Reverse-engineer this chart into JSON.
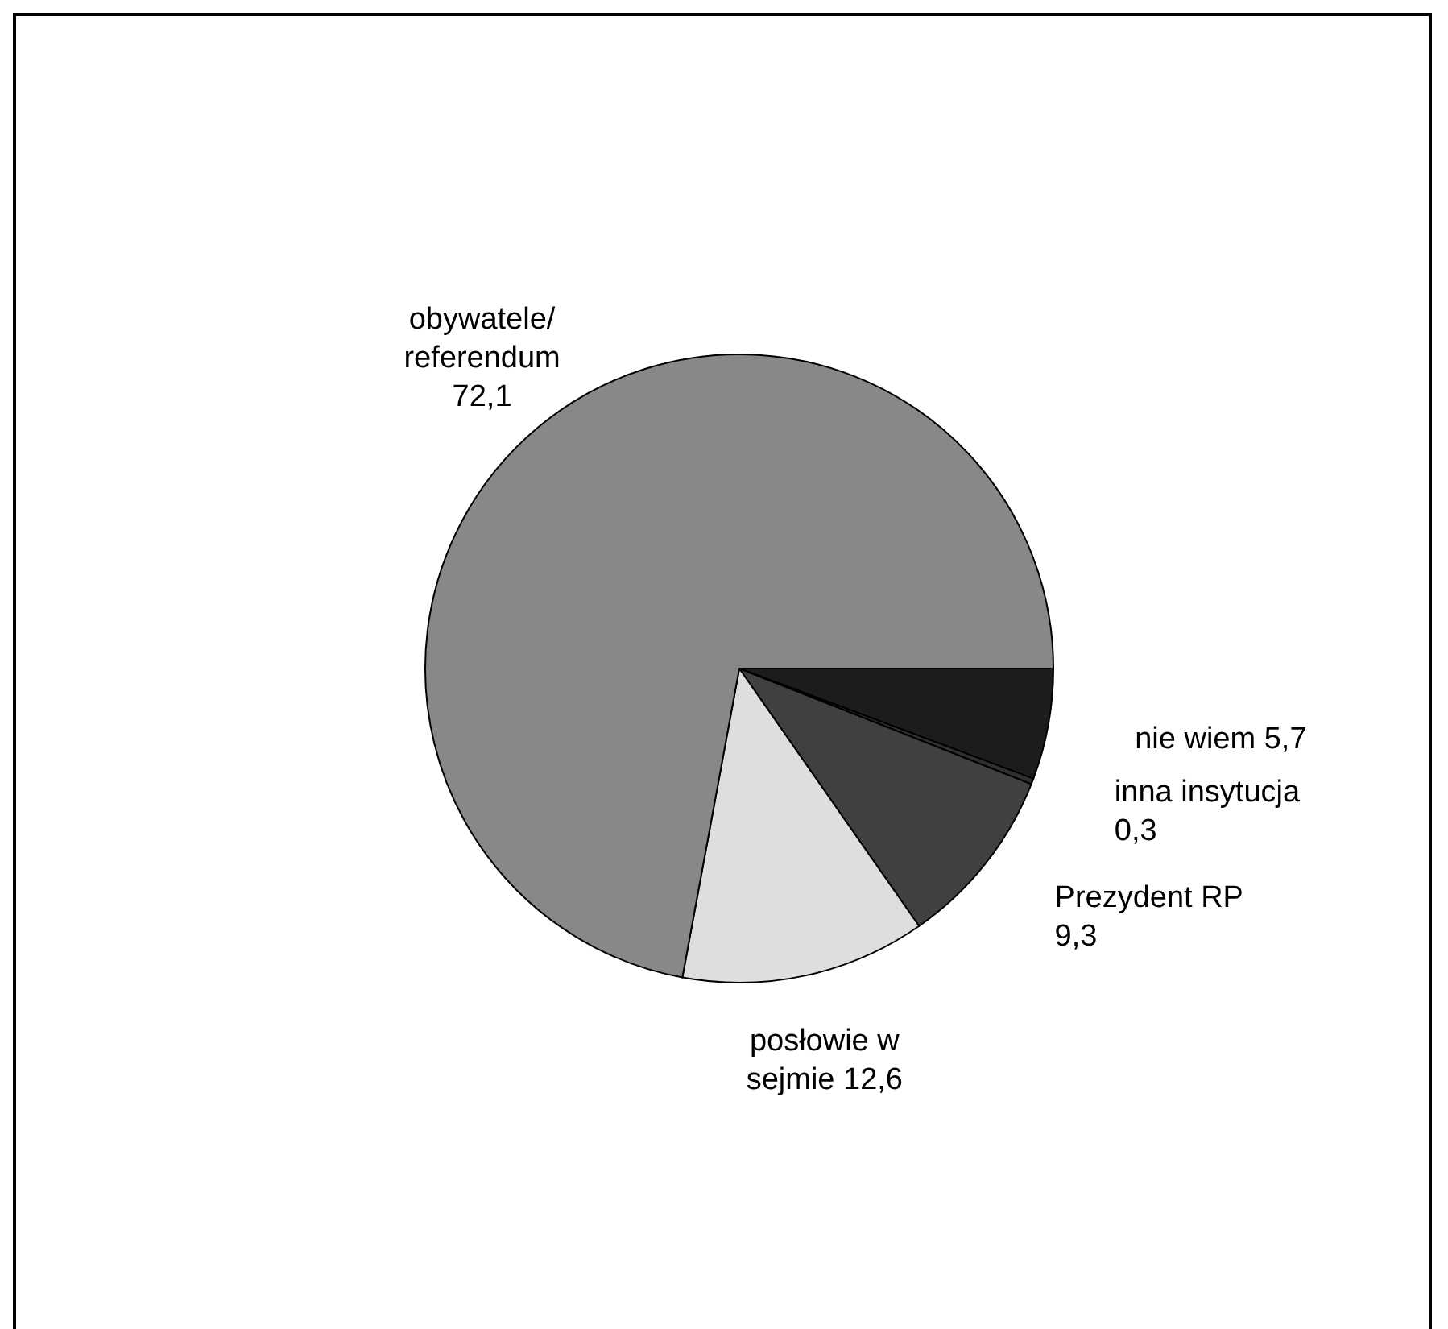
{
  "chart_data": {
    "type": "pie",
    "categories": [
      "nie wiem",
      "inna insytucja",
      "Prezydent RP",
      "posłowie w sejmie",
      "obywatele/ referendum"
    ],
    "values": [
      5.7,
      0.3,
      9.3,
      12.6,
      72.1
    ],
    "value_labels": [
      "5,7",
      "0,3",
      "9,3",
      "12,6",
      "72,1"
    ],
    "colors": [
      "#1c1c1c",
      "#303030",
      "#404040",
      "#dedede",
      "#888888"
    ],
    "data_labels": true
  }
}
